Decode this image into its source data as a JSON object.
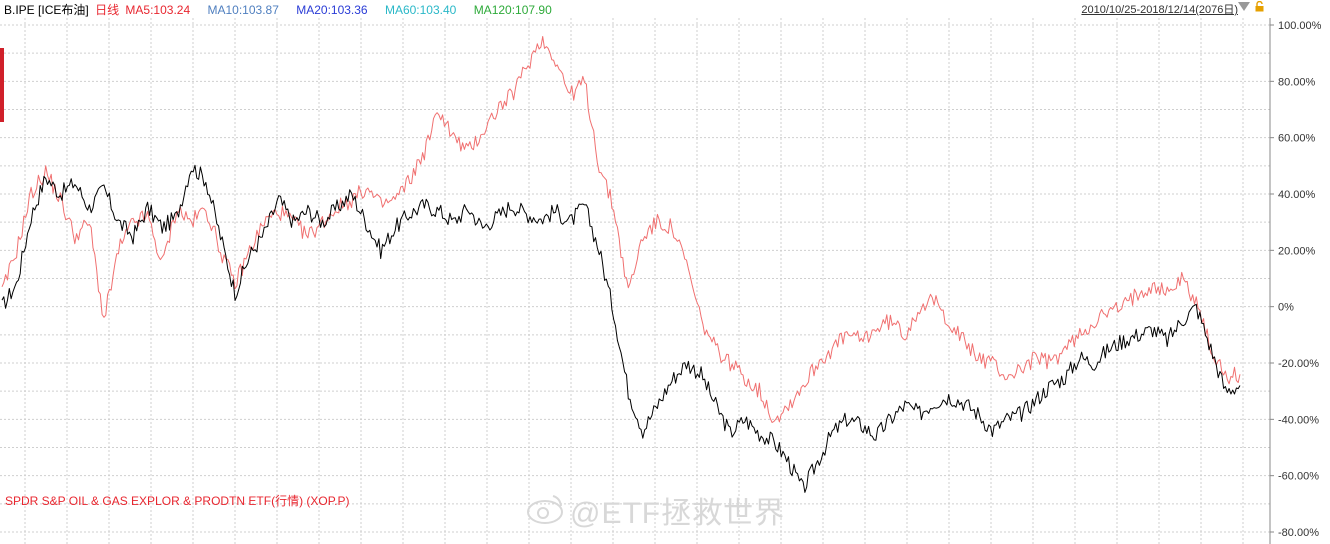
{
  "header": {
    "symbol": "B.IPE",
    "exchange": "[ICE布油]",
    "period": "日线",
    "ma5": "MA5:103.24",
    "ma10": "MA10:103.87",
    "ma20": "MA20:103.36",
    "ma60": "MA60:103.40",
    "ma120": "MA120:107.90",
    "range": "2010/10/25-2018/12/14(2076日)"
  },
  "colors": {
    "ma5": "#e8262f",
    "ma10": "#4f7fbf",
    "ma20": "#2a3cd6",
    "ma60": "#2ab8c8",
    "ma120": "#2eaa3a",
    "brent": "#000000",
    "xop": "#f07070",
    "grid": "#cfcfcf"
  },
  "etf_label": "SPDR S&P OIL & GAS EXPLOR & PRODTN ETF(行情) (XOP.P)",
  "watermark": "@ETF拯救世界",
  "chart_data": {
    "type": "line",
    "x_range": [
      "2010/10/25",
      "2018/12/14"
    ],
    "ylim": [
      -80,
      100
    ],
    "yticks": [
      "100.00%",
      "80.00%",
      "60.00%",
      "40.00%",
      "20.00%",
      "0%",
      "-20.00%",
      "-40.00%",
      "-60.00%",
      "-80.00%"
    ],
    "ytick_values": [
      100,
      80,
      60,
      40,
      20,
      0,
      -20,
      -40,
      -60,
      -80
    ],
    "grid": true,
    "series": [
      {
        "name": "B.IPE",
        "values": [
          0,
          8,
          32,
          46,
          40,
          44,
          35,
          42,
          30,
          25,
          35,
          28,
          32,
          50,
          45,
          25,
          5,
          18,
          26,
          38,
          30,
          34,
          30,
          35,
          40,
          30,
          20,
          28,
          33,
          36,
          34,
          30,
          35,
          28,
          32,
          36,
          33,
          31,
          34,
          30,
          36,
          20,
          -2,
          -30,
          -44,
          -35,
          -26,
          -20,
          -24,
          -35,
          -45,
          -40,
          -45,
          -48,
          -55,
          -65,
          -55,
          -45,
          -40,
          -42,
          -46,
          -40,
          -35,
          -38,
          -34,
          -32,
          -34,
          -38,
          -44,
          -40,
          -38,
          -33,
          -28,
          -25,
          -18,
          -20,
          -15,
          -12,
          -10,
          -8,
          -12,
          -5,
          0,
          -15,
          -30,
          -28
        ]
      },
      {
        "name": "SPDR S&P OIL & GAS EXPLOR & PRODTN ETF(行情) (XOP.P)",
        "values": [
          5,
          20,
          40,
          48,
          38,
          25,
          30,
          -5,
          20,
          30,
          32,
          15,
          35,
          30,
          35,
          20,
          8,
          20,
          30,
          34,
          30,
          25,
          30,
          35,
          38,
          42,
          36,
          38,
          45,
          55,
          70,
          60,
          55,
          62,
          70,
          75,
          85,
          95,
          88,
          75,
          80,
          50,
          35,
          5,
          25,
          30,
          28,
          15,
          -5,
          -15,
          -20,
          -25,
          -30,
          -40,
          -35,
          -28,
          -20,
          -15,
          -10,
          -12,
          -8,
          -5,
          -10,
          0,
          2,
          -5,
          -12,
          -18,
          -20,
          -25,
          -22,
          -18,
          -20,
          -15,
          -10,
          -5,
          -2,
          0,
          5,
          8,
          5,
          10,
          2,
          -15,
          -25,
          -24
        ]
      }
    ]
  }
}
